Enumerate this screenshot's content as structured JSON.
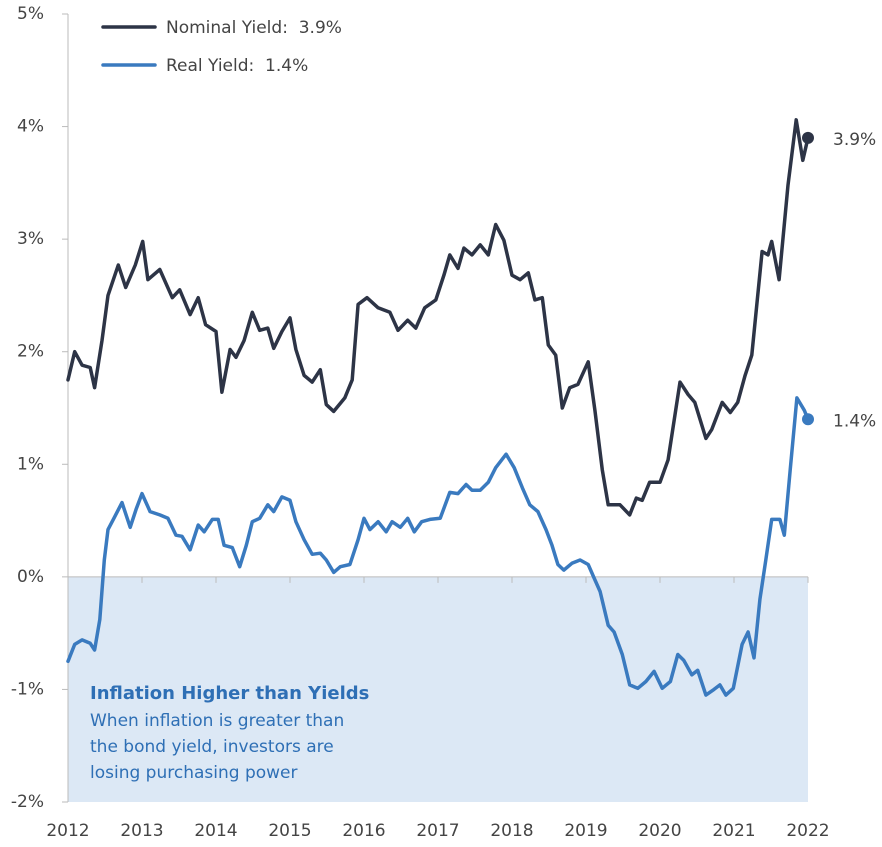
{
  "chart_data": {
    "type": "line",
    "xlim": [
      2012,
      2022
    ],
    "xticks": [
      2012,
      2013,
      2014,
      2015,
      2016,
      2017,
      2018,
      2019,
      2020,
      2021,
      2022
    ],
    "ylim": [
      -2,
      5
    ],
    "yticks": [
      {
        "value": -2,
        "label": "-2%"
      },
      {
        "value": -1,
        "label": "-1%"
      },
      {
        "value": 0,
        "label": "0%"
      },
      {
        "value": 1,
        "label": "1%"
      },
      {
        "value": 2,
        "label": "2%"
      },
      {
        "value": 3,
        "label": "3%"
      },
      {
        "value": 4,
        "label": "4%"
      },
      {
        "value": 5,
        "label": "5%"
      }
    ],
    "shade_below_zero": true,
    "shade_color": "#dce8f5",
    "annotation": {
      "title": "Inflation Higher than Yields",
      "lines": [
        "When inflation is greater than",
        "the bond yield, investors are",
        "losing purchasing power"
      ]
    },
    "series": [
      {
        "name": "Nominal Yield:  3.9%",
        "color": "#2d3446",
        "end_label": "3.9%",
        "x": [
          2012.0,
          2012.09,
          2012.19,
          2012.3,
          2012.36,
          2012.46,
          2012.54,
          2012.68,
          2012.78,
          2012.91,
          2013.01,
          2013.08,
          2013.24,
          2013.41,
          2013.51,
          2013.65,
          2013.76,
          2013.86,
          2014.0,
          2014.08,
          2014.19,
          2014.27,
          2014.38,
          2014.49,
          2014.59,
          2014.7,
          2014.78,
          2014.89,
          2015.0,
          2015.08,
          2015.19,
          2015.3,
          2015.41,
          2015.49,
          2015.59,
          2015.74,
          2015.84,
          2015.92,
          2016.04,
          2016.19,
          2016.35,
          2016.46,
          2016.59,
          2016.7,
          2016.82,
          2016.97,
          2017.08,
          2017.16,
          2017.27,
          2017.35,
          2017.46,
          2017.57,
          2017.68,
          2017.78,
          2017.89,
          2018.0,
          2018.11,
          2018.22,
          2018.31,
          2018.41,
          2018.49,
          2018.59,
          2018.68,
          2018.78,
          2018.89,
          2019.03,
          2019.12,
          2019.22,
          2019.3,
          2019.46,
          2019.59,
          2019.68,
          2019.76,
          2019.86,
          2020.0,
          2020.11,
          2020.27,
          2020.38,
          2020.47,
          2020.62,
          2020.7,
          2020.84,
          2020.95,
          2021.05,
          2021.15,
          2021.24,
          2021.38,
          2021.46,
          2021.51,
          2021.61,
          2021.73,
          2021.84,
          2021.93,
          2022.0
        ],
        "values": [
          1.75,
          2.0,
          1.88,
          1.86,
          1.68,
          2.1,
          2.5,
          2.77,
          2.57,
          2.77,
          2.98,
          2.64,
          2.73,
          2.48,
          2.55,
          2.33,
          2.48,
          2.24,
          2.18,
          1.64,
          2.02,
          1.95,
          2.1,
          2.35,
          2.19,
          2.21,
          2.03,
          2.18,
          2.3,
          2.02,
          1.79,
          1.73,
          1.84,
          1.53,
          1.47,
          1.59,
          1.75,
          2.42,
          2.48,
          2.39,
          2.35,
          2.19,
          2.28,
          2.21,
          2.39,
          2.46,
          2.68,
          2.86,
          2.74,
          2.92,
          2.86,
          2.95,
          2.86,
          3.13,
          2.99,
          2.68,
          2.64,
          2.7,
          2.46,
          2.48,
          2.06,
          1.97,
          1.5,
          1.68,
          1.71,
          1.91,
          1.48,
          0.95,
          0.64,
          0.64,
          0.55,
          0.7,
          0.68,
          0.84,
          0.84,
          1.04,
          1.73,
          1.62,
          1.55,
          1.23,
          1.31,
          1.55,
          1.46,
          1.55,
          1.79,
          1.97,
          2.89,
          2.86,
          2.98,
          2.64,
          3.48,
          4.06,
          3.7,
          3.9
        ]
      },
      {
        "name": "Real Yield:  1.4%",
        "color": "#3a7abf",
        "end_label": "1.4%",
        "x": [
          2012.0,
          2012.09,
          2012.19,
          2012.3,
          2012.36,
          2012.43,
          2012.49,
          2012.54,
          2012.62,
          2012.73,
          2012.84,
          2012.92,
          2013.0,
          2013.11,
          2013.24,
          2013.35,
          2013.46,
          2013.54,
          2013.65,
          2013.76,
          2013.84,
          2013.95,
          2014.03,
          2014.11,
          2014.22,
          2014.32,
          2014.41,
          2014.49,
          2014.59,
          2014.7,
          2014.78,
          2014.89,
          2015.0,
          2015.08,
          2015.19,
          2015.3,
          2015.41,
          2015.49,
          2015.59,
          2015.68,
          2015.81,
          2015.92,
          2016.0,
          2016.08,
          2016.19,
          2016.3,
          2016.38,
          2016.49,
          2016.59,
          2016.68,
          2016.78,
          2016.89,
          2017.03,
          2017.16,
          2017.27,
          2017.38,
          2017.46,
          2017.57,
          2017.68,
          2017.78,
          2017.92,
          2018.03,
          2018.14,
          2018.24,
          2018.35,
          2018.46,
          2018.54,
          2018.62,
          2018.7,
          2018.81,
          2018.92,
          2019.03,
          2019.11,
          2019.19,
          2019.3,
          2019.38,
          2019.49,
          2019.59,
          2019.7,
          2019.81,
          2019.92,
          2020.03,
          2020.14,
          2020.24,
          2020.32,
          2020.43,
          2020.51,
          2020.62,
          2020.73,
          2020.81,
          2020.89,
          2020.99,
          2021.11,
          2021.19,
          2021.27,
          2021.35,
          2021.43,
          2021.51,
          2021.62,
          2021.68,
          2021.76,
          2021.85,
          2021.95,
          2022.0
        ],
        "values": [
          -0.75,
          -0.6,
          -0.56,
          -0.59,
          -0.65,
          -0.38,
          0.15,
          0.42,
          0.52,
          0.66,
          0.44,
          0.6,
          0.74,
          0.58,
          0.55,
          0.52,
          0.37,
          0.36,
          0.24,
          0.46,
          0.4,
          0.51,
          0.51,
          0.28,
          0.26,
          0.09,
          0.28,
          0.49,
          0.52,
          0.64,
          0.58,
          0.71,
          0.68,
          0.49,
          0.33,
          0.2,
          0.21,
          0.15,
          0.04,
          0.09,
          0.11,
          0.33,
          0.52,
          0.42,
          0.49,
          0.4,
          0.49,
          0.44,
          0.52,
          0.4,
          0.49,
          0.51,
          0.52,
          0.75,
          0.74,
          0.82,
          0.77,
          0.77,
          0.84,
          0.97,
          1.09,
          0.97,
          0.79,
          0.64,
          0.58,
          0.42,
          0.28,
          0.11,
          0.06,
          0.12,
          0.15,
          0.11,
          -0.01,
          -0.13,
          -0.43,
          -0.49,
          -0.69,
          -0.96,
          -0.99,
          -0.93,
          -0.84,
          -0.99,
          -0.93,
          -0.69,
          -0.74,
          -0.87,
          -0.83,
          -1.05,
          -1.0,
          -0.96,
          -1.05,
          -0.99,
          -0.6,
          -0.49,
          -0.72,
          -0.2,
          0.15,
          0.51,
          0.51,
          0.37,
          0.95,
          1.59,
          1.48,
          1.4
        ]
      }
    ]
  }
}
